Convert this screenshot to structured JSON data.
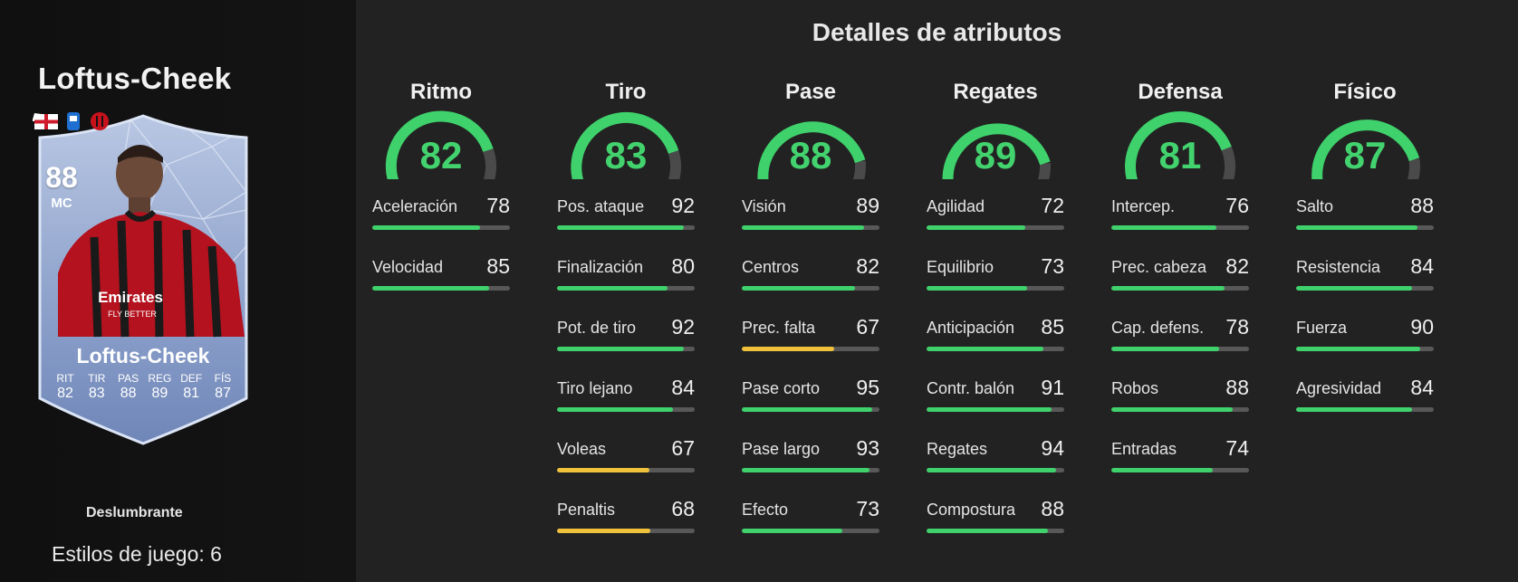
{
  "player": {
    "name": "Loftus-Cheek",
    "card": {
      "rating": "88",
      "position": "MC",
      "name": "Loftus-Cheek",
      "stats": [
        {
          "label": "RIT",
          "value": "82"
        },
        {
          "label": "TIR",
          "value": "83"
        },
        {
          "label": "PAS",
          "value": "88"
        },
        {
          "label": "REG",
          "value": "89"
        },
        {
          "label": "DEF",
          "value": "81"
        },
        {
          "label": "FÍS",
          "value": "87"
        }
      ]
    },
    "rarity": "Deslumbrante",
    "playstyles": "Estilos de juego: 6"
  },
  "details": {
    "title": "Detalles de atributos",
    "categories": [
      {
        "name": "Ritmo",
        "value": 82,
        "attributes": [
          {
            "label": "Aceleración",
            "value": 78
          },
          {
            "label": "Velocidad",
            "value": 85
          }
        ]
      },
      {
        "name": "Tiro",
        "value": 83,
        "attributes": [
          {
            "label": "Pos. ataque",
            "value": 92
          },
          {
            "label": "Finalización",
            "value": 80
          },
          {
            "label": "Pot. de tiro",
            "value": 92
          },
          {
            "label": "Tiro lejano",
            "value": 84
          },
          {
            "label": "Voleas",
            "value": 67
          },
          {
            "label": "Penaltis",
            "value": 68
          }
        ]
      },
      {
        "name": "Pase",
        "value": 88,
        "attributes": [
          {
            "label": "Visión",
            "value": 89
          },
          {
            "label": "Centros",
            "value": 82
          },
          {
            "label": "Prec. falta",
            "value": 67
          },
          {
            "label": "Pase corto",
            "value": 95
          },
          {
            "label": "Pase largo",
            "value": 93
          },
          {
            "label": "Efecto",
            "value": 73
          }
        ]
      },
      {
        "name": "Regates",
        "value": 89,
        "attributes": [
          {
            "label": "Agilidad",
            "value": 72
          },
          {
            "label": "Equilibrio",
            "value": 73
          },
          {
            "label": "Anticipación",
            "value": 85
          },
          {
            "label": "Contr. balón",
            "value": 91
          },
          {
            "label": "Regates",
            "value": 94
          },
          {
            "label": "Compostura",
            "value": 88
          }
        ]
      },
      {
        "name": "Defensa",
        "value": 81,
        "attributes": [
          {
            "label": "Intercep.",
            "value": 76
          },
          {
            "label": "Prec. cabeza",
            "value": 82
          },
          {
            "label": "Cap. defens.",
            "value": 78
          },
          {
            "label": "Robos",
            "value": 88
          },
          {
            "label": "Entradas",
            "value": 74
          }
        ]
      },
      {
        "name": "Físico",
        "value": 87,
        "attributes": [
          {
            "label": "Salto",
            "value": 88
          },
          {
            "label": "Resistencia",
            "value": 84
          },
          {
            "label": "Fuerza",
            "value": 90
          },
          {
            "label": "Agresividad",
            "value": 84
          }
        ]
      }
    ]
  },
  "colors": {
    "high": "#3fd16b",
    "mid": "#f0c23b",
    "track": "#585858",
    "gauge_track": "#4a4a4a"
  }
}
